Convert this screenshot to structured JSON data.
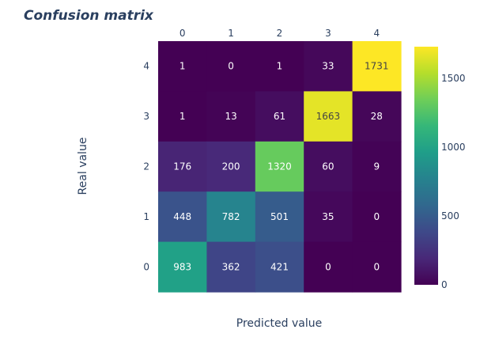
{
  "chart_data": {
    "type": "heatmap",
    "title": "Confusion matrix",
    "xlabel": "Predicted value",
    "ylabel": "Real value",
    "x_categories": [
      "0",
      "1",
      "2",
      "3",
      "4"
    ],
    "y_categories": [
      "4",
      "3",
      "2",
      "1",
      "0"
    ],
    "z": [
      [
        1,
        0,
        1,
        33,
        1731
      ],
      [
        1,
        13,
        61,
        1663,
        28
      ],
      [
        176,
        200,
        1320,
        60,
        9
      ],
      [
        448,
        782,
        501,
        35,
        0
      ],
      [
        983,
        362,
        421,
        0,
        0
      ]
    ],
    "zlim": [
      0,
      1731
    ],
    "colorscale": "Viridis",
    "colorbar_ticks": [
      "0",
      "500",
      "1000",
      "1500"
    ],
    "colorbar_tick_values": [
      0,
      500,
      1000,
      1500
    ]
  }
}
